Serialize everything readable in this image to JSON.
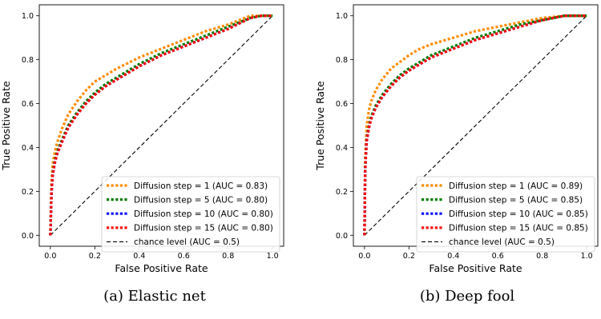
{
  "chart_data": [
    {
      "type": "line",
      "caption": "(a) Elastic net",
      "xlabel": "False Positive Rate",
      "ylabel": "True Positive Rate",
      "xlim": [
        -0.05,
        1.05
      ],
      "ylim": [
        -0.05,
        1.05
      ],
      "xticks": [
        "0.0",
        "0.2",
        "0.4",
        "0.6",
        "0.8",
        "1.0"
      ],
      "yticks": [
        "0.0",
        "0.2",
        "0.4",
        "0.6",
        "0.8",
        "1.0"
      ],
      "legend_position": "lower-right",
      "series": [
        {
          "name": "Diffusion step = 1 (AUC = 0.83)",
          "color": "#ff8c00",
          "x": [
            0,
            0.005,
            0.01,
            0.02,
            0.03,
            0.05,
            0.08,
            0.12,
            0.16,
            0.2,
            0.25,
            0.3,
            0.4,
            0.5,
            0.6,
            0.7,
            0.8,
            0.9,
            0.95,
            1.0
          ],
          "y": [
            0,
            0.24,
            0.32,
            0.38,
            0.42,
            0.48,
            0.55,
            0.61,
            0.66,
            0.7,
            0.73,
            0.76,
            0.81,
            0.85,
            0.89,
            0.93,
            0.96,
            1.0,
            1.0,
            1.0
          ]
        },
        {
          "name": "Diffusion step = 5 (AUC = 0.80)",
          "color": "#008000",
          "x": [
            0,
            0.005,
            0.01,
            0.02,
            0.03,
            0.05,
            0.08,
            0.12,
            0.16,
            0.2,
            0.25,
            0.3,
            0.4,
            0.5,
            0.6,
            0.7,
            0.8,
            0.9,
            0.95,
            1.0
          ],
          "y": [
            0,
            0.2,
            0.28,
            0.34,
            0.38,
            0.43,
            0.5,
            0.56,
            0.61,
            0.65,
            0.69,
            0.72,
            0.78,
            0.83,
            0.87,
            0.91,
            0.95,
            0.99,
            1.0,
            1.0
          ]
        },
        {
          "name": "Diffusion step = 10 (AUC = 0.80)",
          "color": "#0000ff",
          "x": [
            0,
            0.005,
            0.01,
            0.02,
            0.03,
            0.05,
            0.08,
            0.12,
            0.16,
            0.2,
            0.25,
            0.3,
            0.4,
            0.5,
            0.6,
            0.7,
            0.8,
            0.9,
            0.95,
            1.0
          ],
          "y": [
            0,
            0.19,
            0.27,
            0.33,
            0.37,
            0.42,
            0.49,
            0.55,
            0.6,
            0.64,
            0.68,
            0.71,
            0.77,
            0.82,
            0.86,
            0.9,
            0.94,
            0.99,
            1.0,
            1.0
          ]
        },
        {
          "name": "Diffusion step = 15 (AUC = 0.80)",
          "color": "#ff0000",
          "x": [
            0,
            0.005,
            0.01,
            0.02,
            0.03,
            0.05,
            0.08,
            0.12,
            0.16,
            0.2,
            0.25,
            0.3,
            0.4,
            0.5,
            0.6,
            0.7,
            0.8,
            0.9,
            0.95,
            1.0
          ],
          "y": [
            0,
            0.19,
            0.27,
            0.33,
            0.37,
            0.42,
            0.49,
            0.55,
            0.6,
            0.64,
            0.68,
            0.71,
            0.77,
            0.82,
            0.86,
            0.9,
            0.94,
            0.99,
            1.0,
            1.0
          ]
        },
        {
          "name": "chance level (AUC = 0.5)",
          "color": "#000000",
          "dashed": true,
          "x": [
            0,
            1
          ],
          "y": [
            0,
            1
          ]
        }
      ]
    },
    {
      "type": "line",
      "caption": "(b) Deep fool",
      "xlabel": "False Positive Rate",
      "ylabel": "True Positive Rate",
      "xlim": [
        -0.05,
        1.05
      ],
      "ylim": [
        -0.05,
        1.05
      ],
      "xticks": [
        "0.0",
        "0.2",
        "0.4",
        "0.6",
        "0.8",
        "1.0"
      ],
      "yticks": [
        "0.0",
        "0.2",
        "0.4",
        "0.6",
        "0.8",
        "1.0"
      ],
      "legend_position": "lower-right",
      "series": [
        {
          "name": "Diffusion step = 1 (AUC = 0.89)",
          "color": "#ff8c00",
          "x": [
            0,
            0.003,
            0.006,
            0.01,
            0.02,
            0.03,
            0.05,
            0.08,
            0.12,
            0.16,
            0.2,
            0.25,
            0.3,
            0.4,
            0.5,
            0.6,
            0.7,
            0.8,
            0.9,
            0.95,
            1.0
          ],
          "y": [
            0,
            0.35,
            0.42,
            0.5,
            0.57,
            0.61,
            0.66,
            0.71,
            0.76,
            0.79,
            0.82,
            0.85,
            0.87,
            0.9,
            0.93,
            0.95,
            0.97,
            0.99,
            1.0,
            1.0,
            1.0
          ]
        },
        {
          "name": "Diffusion step = 5 (AUC = 0.85)",
          "color": "#008000",
          "x": [
            0,
            0.003,
            0.006,
            0.01,
            0.02,
            0.03,
            0.05,
            0.08,
            0.12,
            0.16,
            0.2,
            0.25,
            0.3,
            0.4,
            0.5,
            0.6,
            0.7,
            0.8,
            0.9,
            0.95,
            1.0
          ],
          "y": [
            0,
            0.3,
            0.37,
            0.44,
            0.5,
            0.54,
            0.59,
            0.64,
            0.69,
            0.73,
            0.76,
            0.79,
            0.82,
            0.86,
            0.9,
            0.93,
            0.96,
            0.98,
            1.0,
            1.0,
            1.0
          ]
        },
        {
          "name": "Diffusion step = 10 (AUC = 0.85)",
          "color": "#0000ff",
          "x": [
            0,
            0.003,
            0.006,
            0.01,
            0.02,
            0.03,
            0.05,
            0.08,
            0.12,
            0.16,
            0.2,
            0.25,
            0.3,
            0.4,
            0.5,
            0.6,
            0.7,
            0.8,
            0.9,
            0.95,
            1.0
          ],
          "y": [
            0,
            0.29,
            0.36,
            0.43,
            0.49,
            0.53,
            0.58,
            0.63,
            0.68,
            0.72,
            0.75,
            0.78,
            0.81,
            0.85,
            0.89,
            0.92,
            0.95,
            0.98,
            1.0,
            1.0,
            1.0
          ]
        },
        {
          "name": "Diffusion step = 15 (AUC = 0.85)",
          "color": "#ff0000",
          "x": [
            0,
            0.003,
            0.006,
            0.01,
            0.02,
            0.03,
            0.05,
            0.08,
            0.12,
            0.16,
            0.2,
            0.25,
            0.3,
            0.4,
            0.5,
            0.6,
            0.7,
            0.8,
            0.9,
            0.95,
            1.0
          ],
          "y": [
            0,
            0.29,
            0.36,
            0.43,
            0.49,
            0.53,
            0.58,
            0.63,
            0.68,
            0.72,
            0.75,
            0.78,
            0.81,
            0.85,
            0.89,
            0.92,
            0.95,
            0.98,
            1.0,
            1.0,
            1.0
          ]
        },
        {
          "name": "chance level (AUC = 0.5)",
          "color": "#000000",
          "dashed": true,
          "x": [
            0,
            1
          ],
          "y": [
            0,
            1
          ]
        }
      ]
    }
  ]
}
